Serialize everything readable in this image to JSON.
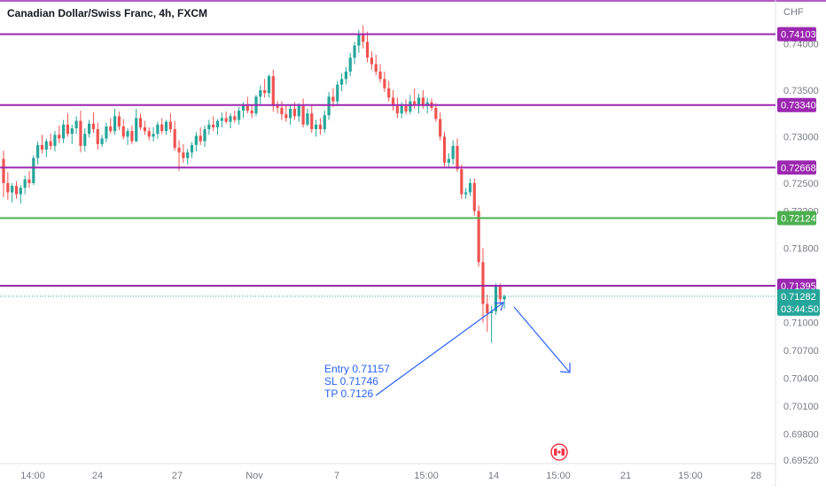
{
  "header": {
    "title": "Canadian Dollar/Swiss Franc, 4h, FXCM",
    "currency": "CHF"
  },
  "countdown": "03:44:50",
  "colors": {
    "up": "#26a69a",
    "down": "#ef5350",
    "resistance": "#9c27b0",
    "support": "#4caf50",
    "annotation": "#2962ff",
    "axis_text": "#787b86",
    "current_price": "#26a69a",
    "event_marker": "#f23645"
  },
  "chart_data": {
    "type": "candlestick",
    "title": "Canadian Dollar/Swiss Franc, 4h, FXCM",
    "ylabel": "CHF",
    "ylim": [
      0.6952,
      0.7428
    ],
    "y_ticks": [
      "0.74000",
      "0.73500",
      "0.73000",
      "0.72500",
      "0.72200",
      "0.71800",
      "0.71000",
      "0.70700",
      "0.70400",
      "0.70100",
      "0.69800",
      "0.69520"
    ],
    "x_ticks": [
      "14:00",
      "24",
      "27",
      "Nov",
      "7",
      "15:00",
      "14",
      "15:00",
      "21",
      "15:00",
      "28"
    ],
    "horizontal_levels": [
      {
        "name": "resistance",
        "price": "0.74103",
        "color": "#9c27b0"
      },
      {
        "name": "resistance",
        "price": "0.73340",
        "color": "#9c27b0"
      },
      {
        "name": "resistance",
        "price": "0.72668",
        "color": "#9c27b0"
      },
      {
        "name": "support",
        "price": "0.72124",
        "color": "#4caf50"
      },
      {
        "name": "resistance",
        "price": "0.71395",
        "color": "#9c27b0"
      }
    ],
    "current_price": "0.71282",
    "annotation": {
      "lines": [
        "Entry 0.71157",
        "SL 0.71746",
        "TP 0.7126"
      ]
    },
    "candles": [
      [
        0.7276,
        0.7285,
        0.7235,
        0.725
      ],
      [
        0.725,
        0.7262,
        0.7232,
        0.724
      ],
      [
        0.724,
        0.725,
        0.7229,
        0.7247
      ],
      [
        0.7247,
        0.7252,
        0.7233,
        0.7238
      ],
      [
        0.7238,
        0.7248,
        0.7228,
        0.7245
      ],
      [
        0.7245,
        0.7258,
        0.7238,
        0.7254
      ],
      [
        0.7254,
        0.7263,
        0.7245,
        0.725
      ],
      [
        0.725,
        0.728,
        0.7248,
        0.7277
      ],
      [
        0.7277,
        0.7295,
        0.727,
        0.7291
      ],
      [
        0.7291,
        0.7302,
        0.7282,
        0.7286
      ],
      [
        0.7286,
        0.7298,
        0.7278,
        0.7295
      ],
      [
        0.7295,
        0.7303,
        0.7286,
        0.729
      ],
      [
        0.729,
        0.7306,
        0.7284,
        0.7302
      ],
      [
        0.7302,
        0.7312,
        0.7293,
        0.7298
      ],
      [
        0.7298,
        0.7318,
        0.7293,
        0.7313
      ],
      [
        0.7313,
        0.7325,
        0.73,
        0.7303
      ],
      [
        0.7303,
        0.7313,
        0.7292,
        0.7309
      ],
      [
        0.7309,
        0.7322,
        0.7303,
        0.7317
      ],
      [
        0.7317,
        0.7328,
        0.7283,
        0.729
      ],
      [
        0.729,
        0.7309,
        0.7284,
        0.7303
      ],
      [
        0.7303,
        0.7318,
        0.7299,
        0.7314
      ],
      [
        0.7314,
        0.7326,
        0.7304,
        0.7308
      ],
      [
        0.7308,
        0.7315,
        0.7286,
        0.7292
      ],
      [
        0.7292,
        0.7302,
        0.7289,
        0.7298
      ],
      [
        0.7298,
        0.7315,
        0.7294,
        0.7311
      ],
      [
        0.7311,
        0.732,
        0.7303,
        0.7306
      ],
      [
        0.7306,
        0.733,
        0.7302,
        0.7322
      ],
      [
        0.7322,
        0.7327,
        0.7307,
        0.7311
      ],
      [
        0.7311,
        0.7319,
        0.7297,
        0.73
      ],
      [
        0.73,
        0.7309,
        0.7291,
        0.7306
      ],
      [
        0.7306,
        0.7312,
        0.7292,
        0.7295
      ],
      [
        0.7295,
        0.733,
        0.7294,
        0.732
      ],
      [
        0.732,
        0.7325,
        0.7307,
        0.731
      ],
      [
        0.731,
        0.7317,
        0.7302,
        0.7306
      ],
      [
        0.7306,
        0.731,
        0.7296,
        0.73
      ],
      [
        0.73,
        0.731,
        0.7295,
        0.7303
      ],
      [
        0.7303,
        0.7316,
        0.7298,
        0.7313
      ],
      [
        0.7313,
        0.732,
        0.7303,
        0.7306
      ],
      [
        0.7306,
        0.7318,
        0.7302,
        0.7316
      ],
      [
        0.7316,
        0.7325,
        0.7304,
        0.7308
      ],
      [
        0.7308,
        0.7317,
        0.7285,
        0.7288
      ],
      [
        0.7288,
        0.7296,
        0.7263,
        0.7283
      ],
      [
        0.7283,
        0.7292,
        0.7272,
        0.7277
      ],
      [
        0.7277,
        0.7287,
        0.727,
        0.7283
      ],
      [
        0.7283,
        0.7294,
        0.7277,
        0.7291
      ],
      [
        0.7291,
        0.7305,
        0.7284,
        0.7301
      ],
      [
        0.7301,
        0.731,
        0.7291,
        0.7295
      ],
      [
        0.7295,
        0.7312,
        0.7289,
        0.7308
      ],
      [
        0.7308,
        0.7318,
        0.7302,
        0.7313
      ],
      [
        0.7313,
        0.7322,
        0.7306,
        0.731
      ],
      [
        0.731,
        0.7319,
        0.7302,
        0.7317
      ],
      [
        0.7317,
        0.7326,
        0.731,
        0.732
      ],
      [
        0.732,
        0.7327,
        0.7314,
        0.7316
      ],
      [
        0.7316,
        0.7325,
        0.7309,
        0.7322
      ],
      [
        0.7322,
        0.7328,
        0.7315,
        0.7318
      ],
      [
        0.7318,
        0.7332,
        0.7313,
        0.7328
      ],
      [
        0.7328,
        0.7337,
        0.732,
        0.7333
      ],
      [
        0.7333,
        0.7343,
        0.7325,
        0.7328
      ],
      [
        0.7328,
        0.7335,
        0.732,
        0.7325
      ],
      [
        0.7325,
        0.7345,
        0.7322,
        0.7343
      ],
      [
        0.7343,
        0.7355,
        0.7335,
        0.735
      ],
      [
        0.735,
        0.7362,
        0.7342,
        0.7347
      ],
      [
        0.7347,
        0.7367,
        0.7342,
        0.7365
      ],
      [
        0.7365,
        0.7372,
        0.7327,
        0.7333
      ],
      [
        0.7333,
        0.7338,
        0.7325,
        0.7331
      ],
      [
        0.7331,
        0.7338,
        0.7318,
        0.7324
      ],
      [
        0.7324,
        0.7333,
        0.7316,
        0.732
      ],
      [
        0.732,
        0.7335,
        0.7313,
        0.733
      ],
      [
        0.733,
        0.7337,
        0.7318,
        0.7322
      ],
      [
        0.7322,
        0.7336,
        0.7316,
        0.7333
      ],
      [
        0.7333,
        0.7341,
        0.731,
        0.7313
      ],
      [
        0.7313,
        0.733,
        0.7311,
        0.7325
      ],
      [
        0.7325,
        0.7333,
        0.7304,
        0.7308
      ],
      [
        0.7308,
        0.7318,
        0.73,
        0.7313
      ],
      [
        0.7313,
        0.732,
        0.7302,
        0.7308
      ],
      [
        0.7308,
        0.7328,
        0.7304,
        0.7323
      ],
      [
        0.7323,
        0.7348,
        0.7318,
        0.7343
      ],
      [
        0.7343,
        0.7352,
        0.7332,
        0.7338
      ],
      [
        0.7338,
        0.736,
        0.7333,
        0.7356
      ],
      [
        0.7356,
        0.7368,
        0.7349,
        0.7362
      ],
      [
        0.7362,
        0.7375,
        0.7356,
        0.737
      ],
      [
        0.737,
        0.739,
        0.7365,
        0.7385
      ],
      [
        0.7385,
        0.7402,
        0.7378,
        0.7398
      ],
      [
        0.7398,
        0.7415,
        0.739,
        0.741
      ],
      [
        0.741,
        0.742,
        0.7395,
        0.7402
      ],
      [
        0.7402,
        0.7413,
        0.738,
        0.7385
      ],
      [
        0.7385,
        0.7392,
        0.7372,
        0.7378
      ],
      [
        0.7378,
        0.7388,
        0.7366,
        0.737
      ],
      [
        0.737,
        0.7378,
        0.7358,
        0.7362
      ],
      [
        0.7362,
        0.737,
        0.7348,
        0.7352
      ],
      [
        0.7352,
        0.736,
        0.7338,
        0.7342
      ],
      [
        0.7342,
        0.735,
        0.7328,
        0.7333
      ],
      [
        0.7333,
        0.7342,
        0.732,
        0.7325
      ],
      [
        0.7325,
        0.7337,
        0.732,
        0.7333
      ],
      [
        0.7333,
        0.734,
        0.7324,
        0.7327
      ],
      [
        0.7327,
        0.7345,
        0.7324,
        0.7338
      ],
      [
        0.7338,
        0.7352,
        0.733,
        0.7335
      ],
      [
        0.7335,
        0.7346,
        0.7325,
        0.7342
      ],
      [
        0.7342,
        0.735,
        0.733,
        0.7333
      ],
      [
        0.7333,
        0.7342,
        0.7325,
        0.7337
      ],
      [
        0.7337,
        0.7341,
        0.7328,
        0.7331
      ],
      [
        0.7331,
        0.7336,
        0.7316,
        0.7319
      ],
      [
        0.7319,
        0.7326,
        0.7296,
        0.73
      ],
      [
        0.73,
        0.7305,
        0.7268,
        0.7272
      ],
      [
        0.7272,
        0.7282,
        0.7266,
        0.7276
      ],
      [
        0.7276,
        0.7296,
        0.727,
        0.729
      ],
      [
        0.729,
        0.7298,
        0.7262,
        0.7265
      ],
      [
        0.7265,
        0.727,
        0.7233,
        0.7238
      ],
      [
        0.7238,
        0.7245,
        0.7233,
        0.724
      ],
      [
        0.724,
        0.7255,
        0.7236,
        0.725
      ],
      [
        0.725,
        0.7255,
        0.7215,
        0.722
      ],
      [
        0.722,
        0.7226,
        0.716,
        0.7165
      ],
      [
        0.7165,
        0.718,
        0.71,
        0.712
      ],
      [
        0.712,
        0.713,
        0.709,
        0.711
      ],
      [
        0.711,
        0.7118,
        0.7078,
        0.7112
      ],
      [
        0.7112,
        0.7142,
        0.7108,
        0.714
      ],
      [
        0.714,
        0.7142,
        0.712,
        0.7125
      ],
      [
        0.7125,
        0.713,
        0.7115,
        0.7128
      ]
    ]
  }
}
